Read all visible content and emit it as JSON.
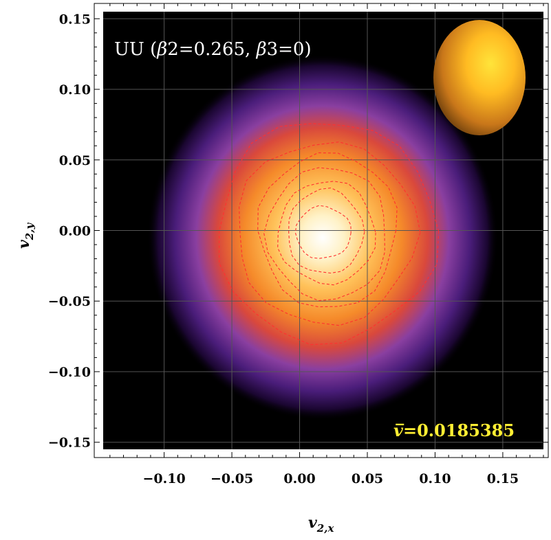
{
  "chart_data": {
    "type": "heatmap",
    "xlabel_main": "v",
    "xlabel_sub": "2,x",
    "ylabel_main": "v",
    "ylabel_sub": "2,y",
    "xlim": [
      -0.145,
      0.18
    ],
    "ylim": [
      -0.155,
      0.155
    ],
    "xticks": [
      -0.1,
      -0.05,
      0.0,
      0.05,
      0.1,
      0.15
    ],
    "yticks": [
      -0.15,
      -0.1,
      -0.05,
      0.0,
      0.05,
      0.1,
      0.15
    ],
    "xtick_labels": [
      "−0.10",
      "−0.05",
      "0.00",
      "0.05",
      "0.10",
      "0.15"
    ],
    "ytick_labels": [
      "−0.15",
      "−0.10",
      "−0.05",
      "0.00",
      "0.05",
      "0.10",
      "0.15"
    ],
    "grid": true,
    "density_center": [
      0.017,
      -0.005
    ],
    "density_sigma": [
      0.036,
      0.036
    ],
    "contours": [
      {
        "x_range": [
          -0.061,
          0.101
        ],
        "y_range": [
          -0.079,
          0.078
        ]
      },
      {
        "x_range": [
          -0.047,
          0.086
        ],
        "y_range": [
          -0.066,
          0.063
        ]
      },
      {
        "x_range": [
          -0.03,
          0.072
        ],
        "y_range": [
          -0.055,
          0.055
        ]
      },
      {
        "x_range": [
          -0.024,
          0.065
        ],
        "y_range": [
          -0.049,
          0.045
        ]
      },
      {
        "x_range": [
          -0.016,
          0.056
        ],
        "y_range": [
          -0.038,
          0.035
        ]
      },
      {
        "x_range": [
          -0.009,
          0.047
        ],
        "y_range": [
          -0.031,
          0.029
        ]
      },
      {
        "x_range": [
          -0.003,
          0.038
        ],
        "y_range": [
          -0.02,
          0.017
        ]
      }
    ],
    "colors": {
      "background": "#000000",
      "contour": "#ff3030",
      "grid": "#555555",
      "colormap": [
        "#000000",
        "#1a0630",
        "#4a1d7a",
        "#8a3fa0",
        "#d4483f",
        "#f07828",
        "#ffb040",
        "#ffe8a0",
        "#ffffff"
      ]
    },
    "annotations": {
      "title_prefix": "UU (",
      "beta2_symbol": "β",
      "beta2_text": "2=0.265, ",
      "beta3_symbol": "β",
      "beta3_text": "3=0)",
      "mean_symbol": "v̅",
      "mean_text": "=0.0185385"
    },
    "nucleus_color": "#f5a21c"
  }
}
